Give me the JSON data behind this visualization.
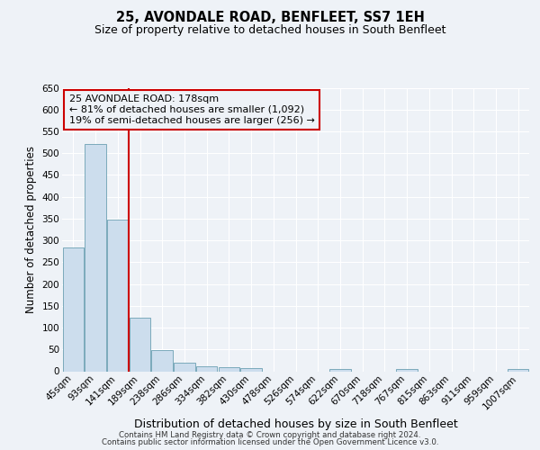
{
  "title": "25, AVONDALE ROAD, BENFLEET, SS7 1EH",
  "subtitle": "Size of property relative to detached houses in South Benfleet",
  "xlabel": "Distribution of detached houses by size in South Benfleet",
  "ylabel": "Number of detached properties",
  "categories": [
    "45sqm",
    "93sqm",
    "141sqm",
    "189sqm",
    "238sqm",
    "286sqm",
    "334sqm",
    "382sqm",
    "430sqm",
    "478sqm",
    "526sqm",
    "574sqm",
    "622sqm",
    "670sqm",
    "718sqm",
    "767sqm",
    "815sqm",
    "863sqm",
    "911sqm",
    "959sqm",
    "1007sqm"
  ],
  "values": [
    283,
    522,
    348,
    122,
    48,
    20,
    11,
    9,
    8,
    0,
    0,
    0,
    5,
    0,
    0,
    5,
    0,
    0,
    0,
    0,
    5
  ],
  "bar_color": "#ccdded",
  "bar_edge_color": "#7aaabb",
  "vline_color": "#cc0000",
  "annotation_text": "25 AVONDALE ROAD: 178sqm\n← 81% of detached houses are smaller (1,092)\n19% of semi-detached houses are larger (256) →",
  "annotation_box_color": "#cc0000",
  "ylim": [
    0,
    650
  ],
  "yticks": [
    0,
    50,
    100,
    150,
    200,
    250,
    300,
    350,
    400,
    450,
    500,
    550,
    600,
    650
  ],
  "title_fontsize": 10.5,
  "subtitle_fontsize": 9,
  "xlabel_fontsize": 9,
  "ylabel_fontsize": 8.5,
  "tick_fontsize": 7.5,
  "annotation_fontsize": 8,
  "footer_line1": "Contains HM Land Registry data © Crown copyright and database right 2024.",
  "footer_line2": "Contains public sector information licensed under the Open Government Licence v3.0.",
  "bg_color": "#eef2f7",
  "grid_color": "#ffffff"
}
